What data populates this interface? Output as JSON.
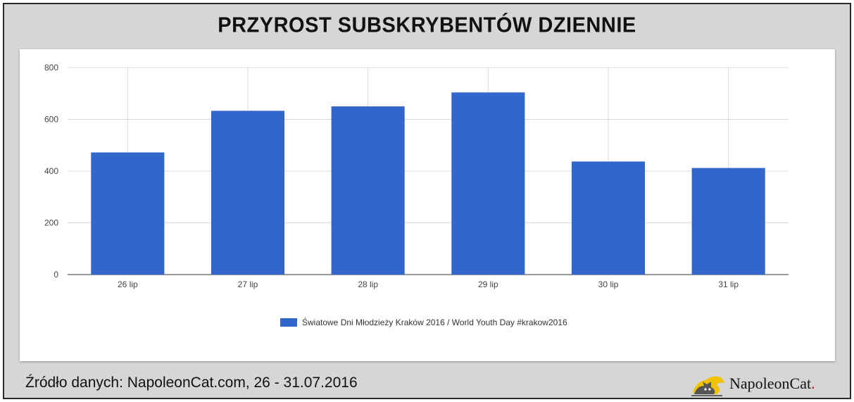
{
  "header": {
    "title": "PRZYROST SUBSKRYBENTÓW DZIENNIE"
  },
  "footer": {
    "source": "Źródło danych: NapoleonCat.com, 26 - 31.07.2016",
    "brand": "NapoleonCat",
    "brand_dot": "."
  },
  "colors": {
    "bar": "#3366cc",
    "frame": "#d6d6d6",
    "accent": "#c8102e"
  },
  "chart_data": {
    "type": "bar",
    "categories": [
      "26 lip",
      "27 lip",
      "28 lip",
      "29 lip",
      "30 lip",
      "31 lip"
    ],
    "series": [
      {
        "name": "Światowe Dni Młodzieży Kraków 2016 / World Youth Day #krakow2016",
        "values": [
          472,
          633,
          650,
          704,
          437,
          412
        ]
      }
    ],
    "ylim": [
      0,
      800
    ],
    "yticks": [
      0,
      200,
      400,
      600,
      800
    ],
    "grid": true,
    "legend": "bottom"
  }
}
